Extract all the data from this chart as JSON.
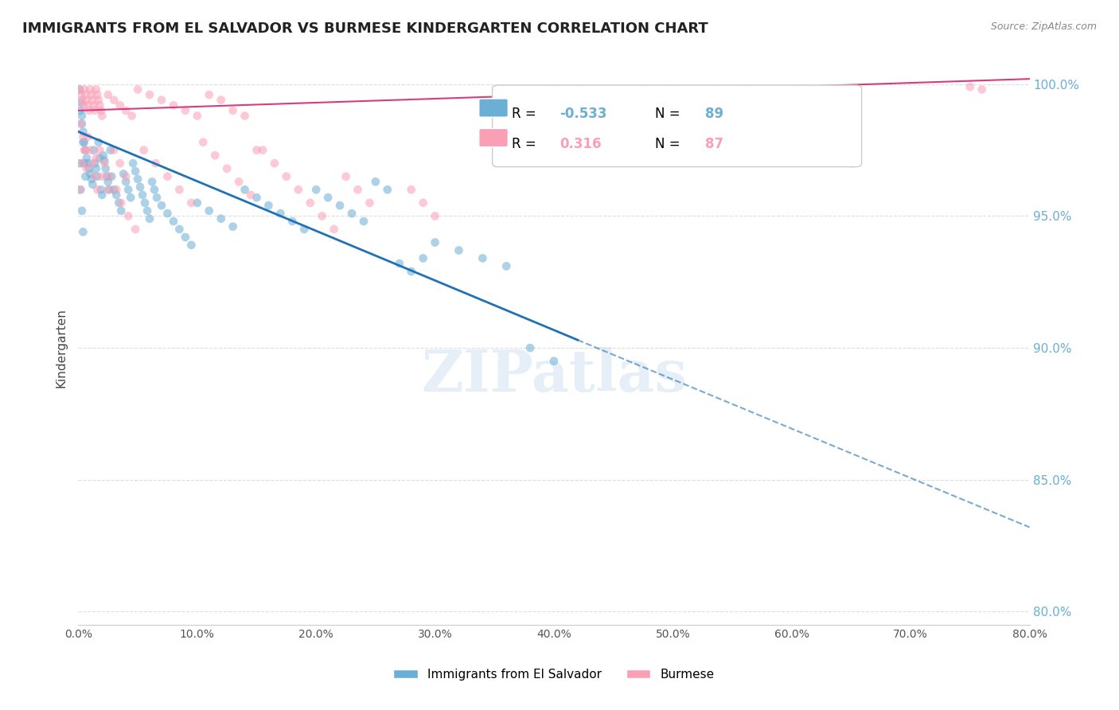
{
  "title": "IMMIGRANTS FROM EL SALVADOR VS BURMESE KINDERGARTEN CORRELATION CHART",
  "source": "Source: ZipAtlas.com",
  "ylabel": "Kindergarten",
  "ytick_labels": [
    "100.0%",
    "95.0%",
    "90.0%",
    "85.0%",
    "80.0%"
  ],
  "ytick_values": [
    1.0,
    0.95,
    0.9,
    0.85,
    0.8
  ],
  "legend_entry1": {
    "label": "Immigrants from El Salvador",
    "R": "-0.533",
    "N": "89",
    "color": "#6baed6"
  },
  "legend_entry2": {
    "label": "Burmese",
    "R": "0.316",
    "N": "87",
    "color": "#fa9fb5"
  },
  "watermark": "ZIPatlas",
  "blue_scatter": [
    [
      0.001,
      0.998
    ],
    [
      0.002,
      0.99
    ],
    [
      0.003,
      0.985
    ],
    [
      0.004,
      0.982
    ],
    [
      0.005,
      0.978
    ],
    [
      0.006,
      0.975
    ],
    [
      0.007,
      0.972
    ],
    [
      0.008,
      0.97
    ],
    [
      0.009,
      0.968
    ],
    [
      0.01,
      0.966
    ],
    [
      0.011,
      0.964
    ],
    [
      0.012,
      0.962
    ],
    [
      0.013,
      0.975
    ],
    [
      0.014,
      0.97
    ],
    [
      0.015,
      0.968
    ],
    [
      0.016,
      0.965
    ],
    [
      0.017,
      0.978
    ],
    [
      0.018,
      0.972
    ],
    [
      0.019,
      0.96
    ],
    [
      0.02,
      0.958
    ],
    [
      0.021,
      0.973
    ],
    [
      0.022,
      0.971
    ],
    [
      0.023,
      0.968
    ],
    [
      0.024,
      0.965
    ],
    [
      0.025,
      0.963
    ],
    [
      0.026,
      0.96
    ],
    [
      0.027,
      0.975
    ],
    [
      0.028,
      0.965
    ],
    [
      0.03,
      0.96
    ],
    [
      0.032,
      0.958
    ],
    [
      0.034,
      0.955
    ],
    [
      0.036,
      0.952
    ],
    [
      0.038,
      0.966
    ],
    [
      0.04,
      0.963
    ],
    [
      0.042,
      0.96
    ],
    [
      0.044,
      0.957
    ],
    [
      0.046,
      0.97
    ],
    [
      0.048,
      0.967
    ],
    [
      0.05,
      0.964
    ],
    [
      0.052,
      0.961
    ],
    [
      0.054,
      0.958
    ],
    [
      0.056,
      0.955
    ],
    [
      0.058,
      0.952
    ],
    [
      0.06,
      0.949
    ],
    [
      0.062,
      0.963
    ],
    [
      0.064,
      0.96
    ],
    [
      0.066,
      0.957
    ],
    [
      0.07,
      0.954
    ],
    [
      0.075,
      0.951
    ],
    [
      0.08,
      0.948
    ],
    [
      0.085,
      0.945
    ],
    [
      0.09,
      0.942
    ],
    [
      0.095,
      0.939
    ],
    [
      0.1,
      0.955
    ],
    [
      0.11,
      0.952
    ],
    [
      0.12,
      0.949
    ],
    [
      0.13,
      0.946
    ],
    [
      0.14,
      0.96
    ],
    [
      0.15,
      0.957
    ],
    [
      0.16,
      0.954
    ],
    [
      0.17,
      0.951
    ],
    [
      0.18,
      0.948
    ],
    [
      0.19,
      0.945
    ],
    [
      0.2,
      0.96
    ],
    [
      0.21,
      0.957
    ],
    [
      0.22,
      0.954
    ],
    [
      0.23,
      0.951
    ],
    [
      0.24,
      0.948
    ],
    [
      0.25,
      0.963
    ],
    [
      0.26,
      0.96
    ],
    [
      0.27,
      0.932
    ],
    [
      0.28,
      0.929
    ],
    [
      0.29,
      0.934
    ],
    [
      0.3,
      0.94
    ],
    [
      0.32,
      0.937
    ],
    [
      0.34,
      0.934
    ],
    [
      0.36,
      0.931
    ],
    [
      0.002,
      0.993
    ],
    [
      0.003,
      0.988
    ],
    [
      0.004,
      0.978
    ],
    [
      0.005,
      0.97
    ],
    [
      0.006,
      0.965
    ],
    [
      0.001,
      0.97
    ],
    [
      0.002,
      0.96
    ],
    [
      0.003,
      0.952
    ],
    [
      0.004,
      0.944
    ],
    [
      0.38,
      0.9
    ],
    [
      0.4,
      0.895
    ]
  ],
  "pink_scatter": [
    [
      0.001,
      0.998
    ],
    [
      0.002,
      0.996
    ],
    [
      0.003,
      0.994
    ],
    [
      0.004,
      0.992
    ],
    [
      0.005,
      0.998
    ],
    [
      0.006,
      0.996
    ],
    [
      0.007,
      0.994
    ],
    [
      0.008,
      0.992
    ],
    [
      0.009,
      0.99
    ],
    [
      0.01,
      0.998
    ],
    [
      0.011,
      0.996
    ],
    [
      0.012,
      0.994
    ],
    [
      0.013,
      0.992
    ],
    [
      0.014,
      0.99
    ],
    [
      0.015,
      0.998
    ],
    [
      0.016,
      0.996
    ],
    [
      0.017,
      0.994
    ],
    [
      0.018,
      0.992
    ],
    [
      0.019,
      0.99
    ],
    [
      0.02,
      0.988
    ],
    [
      0.025,
      0.996
    ],
    [
      0.03,
      0.994
    ],
    [
      0.035,
      0.992
    ],
    [
      0.04,
      0.99
    ],
    [
      0.045,
      0.988
    ],
    [
      0.05,
      0.998
    ],
    [
      0.06,
      0.996
    ],
    [
      0.07,
      0.994
    ],
    [
      0.08,
      0.992
    ],
    [
      0.09,
      0.99
    ],
    [
      0.1,
      0.988
    ],
    [
      0.11,
      0.996
    ],
    [
      0.12,
      0.994
    ],
    [
      0.13,
      0.99
    ],
    [
      0.14,
      0.988
    ],
    [
      0.003,
      0.97
    ],
    [
      0.005,
      0.975
    ],
    [
      0.007,
      0.968
    ],
    [
      0.015,
      0.972
    ],
    [
      0.02,
      0.965
    ],
    [
      0.025,
      0.96
    ],
    [
      0.03,
      0.975
    ],
    [
      0.035,
      0.97
    ],
    [
      0.04,
      0.965
    ],
    [
      0.002,
      0.985
    ],
    [
      0.004,
      0.98
    ],
    [
      0.006,
      0.975
    ],
    [
      0.008,
      0.98
    ],
    [
      0.01,
      0.975
    ],
    [
      0.012,
      0.97
    ],
    [
      0.014,
      0.965
    ],
    [
      0.016,
      0.96
    ],
    [
      0.018,
      0.975
    ],
    [
      0.022,
      0.97
    ],
    [
      0.026,
      0.965
    ],
    [
      0.032,
      0.96
    ],
    [
      0.036,
      0.955
    ],
    [
      0.042,
      0.95
    ],
    [
      0.048,
      0.945
    ],
    [
      0.055,
      0.975
    ],
    [
      0.065,
      0.97
    ],
    [
      0.075,
      0.965
    ],
    [
      0.085,
      0.96
    ],
    [
      0.095,
      0.955
    ],
    [
      0.105,
      0.978
    ],
    [
      0.115,
      0.973
    ],
    [
      0.125,
      0.968
    ],
    [
      0.135,
      0.963
    ],
    [
      0.145,
      0.958
    ],
    [
      0.155,
      0.975
    ],
    [
      0.165,
      0.97
    ],
    [
      0.175,
      0.965
    ],
    [
      0.185,
      0.96
    ],
    [
      0.195,
      0.955
    ],
    [
      0.205,
      0.95
    ],
    [
      0.215,
      0.945
    ],
    [
      0.225,
      0.965
    ],
    [
      0.235,
      0.96
    ],
    [
      0.245,
      0.955
    ],
    [
      0.65,
      0.97
    ],
    [
      0.28,
      0.96
    ],
    [
      0.29,
      0.955
    ],
    [
      0.3,
      0.95
    ],
    [
      0.15,
      0.975
    ],
    [
      0.75,
      0.999
    ],
    [
      0.76,
      0.998
    ],
    [
      0.001,
      0.96
    ]
  ],
  "blue_line_solid": {
    "x0": 0.0,
    "y0": 0.982,
    "x1": 0.42,
    "y1": 0.903
  },
  "blue_line_dash": {
    "x0": 0.42,
    "y0": 0.903,
    "x1": 0.8,
    "y1": 0.832
  },
  "pink_line": {
    "x0": 0.0,
    "y0": 0.99,
    "x1": 0.8,
    "y1": 1.002
  },
  "xlim": [
    0.0,
    0.8
  ],
  "ylim": [
    0.795,
    1.005
  ],
  "background_color": "#ffffff",
  "grid_color": "#dddddd",
  "scatter_size": 60,
  "scatter_alpha": 0.55,
  "blue_color": "#6baed6",
  "pink_color": "#fa9fb5",
  "blue_line_color": "#2171b5",
  "pink_line_color": "#d63c7e",
  "xtick_labels": [
    "0.0%",
    "10.0%",
    "20.0%",
    "30.0%",
    "40.0%",
    "50.0%",
    "60.0%",
    "70.0%",
    "80.0%"
  ],
  "xtick_values": [
    0.0,
    0.1,
    0.2,
    0.3,
    0.4,
    0.5,
    0.6,
    0.7,
    0.8
  ]
}
